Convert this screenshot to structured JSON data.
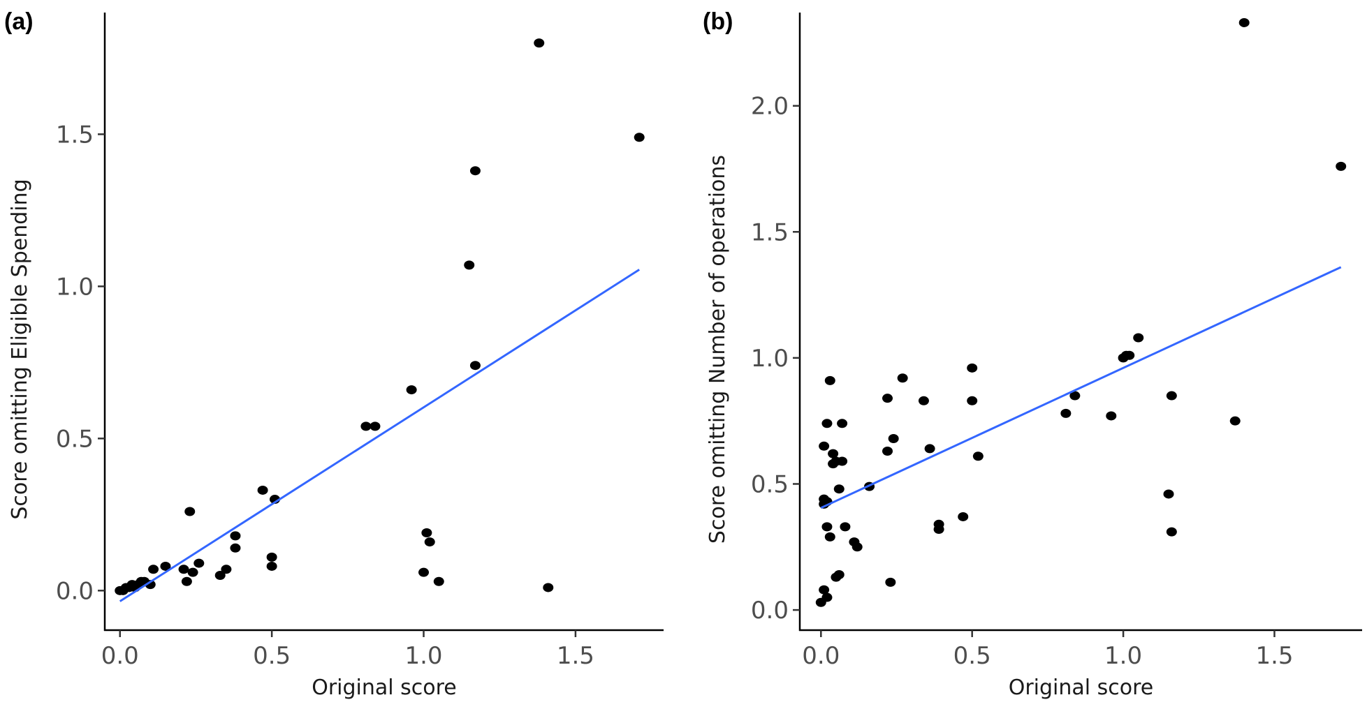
{
  "colors": {
    "point": "#000000",
    "fit_line": "#3366FF"
  },
  "chart_data": [
    {
      "panel": "(a)",
      "type": "scatter",
      "xlabel": "Original score",
      "ylabel": "Score omitting Eligible Spending",
      "xlim": [
        -0.05,
        1.79
      ],
      "ylim": [
        -0.13,
        1.9
      ],
      "xticks": [
        {
          "value": 0.0,
          "label": "0.0"
        },
        {
          "value": 0.5,
          "label": "0.5"
        },
        {
          "value": 1.0,
          "label": "1.0"
        },
        {
          "value": 1.5,
          "label": "1.5"
        }
      ],
      "yticks": [
        {
          "value": 0.0,
          "label": "0.0"
        },
        {
          "value": 0.5,
          "label": "0.5"
        },
        {
          "value": 1.0,
          "label": "1.0"
        },
        {
          "value": 1.5,
          "label": "1.5"
        }
      ],
      "points": [
        [
          0.0,
          0.0
        ],
        [
          0.01,
          0.0
        ],
        [
          0.02,
          0.01
        ],
        [
          0.03,
          0.01
        ],
        [
          0.04,
          0.02
        ],
        [
          0.05,
          0.01
        ],
        [
          0.06,
          0.02
        ],
        [
          0.07,
          0.03
        ],
        [
          0.08,
          0.03
        ],
        [
          0.1,
          0.02
        ],
        [
          0.11,
          0.07
        ],
        [
          0.15,
          0.08
        ],
        [
          0.21,
          0.07
        ],
        [
          0.22,
          0.03
        ],
        [
          0.23,
          0.26
        ],
        [
          0.24,
          0.06
        ],
        [
          0.26,
          0.09
        ],
        [
          0.33,
          0.05
        ],
        [
          0.35,
          0.07
        ],
        [
          0.38,
          0.18
        ],
        [
          0.38,
          0.14
        ],
        [
          0.47,
          0.33
        ],
        [
          0.5,
          0.11
        ],
        [
          0.5,
          0.08
        ],
        [
          0.51,
          0.3
        ],
        [
          0.81,
          0.54
        ],
        [
          0.84,
          0.54
        ],
        [
          0.96,
          0.66
        ],
        [
          1.0,
          0.06
        ],
        [
          1.01,
          0.19
        ],
        [
          1.02,
          0.16
        ],
        [
          1.05,
          0.03
        ],
        [
          1.15,
          1.07
        ],
        [
          1.17,
          1.38
        ],
        [
          1.17,
          0.74
        ],
        [
          1.38,
          1.8
        ],
        [
          1.41,
          0.01
        ],
        [
          1.71,
          1.49
        ]
      ],
      "fit": {
        "x": [
          0.0,
          1.71
        ],
        "y": [
          -0.035,
          1.055
        ]
      }
    },
    {
      "panel": "(b)",
      "type": "scatter",
      "xlabel": "Original score",
      "ylabel": "Score omitting Number of operations",
      "xlim": [
        -0.07,
        1.79
      ],
      "ylim": [
        -0.08,
        2.37
      ],
      "xticks": [
        {
          "value": 0.0,
          "label": "0.0"
        },
        {
          "value": 0.5,
          "label": "0.5"
        },
        {
          "value": 1.0,
          "label": "1.0"
        },
        {
          "value": 1.5,
          "label": "1.5"
        }
      ],
      "yticks": [
        {
          "value": 0.0,
          "label": "0.0"
        },
        {
          "value": 0.5,
          "label": "0.5"
        },
        {
          "value": 1.0,
          "label": "1.0"
        },
        {
          "value": 1.5,
          "label": "1.5"
        },
        {
          "value": 2.0,
          "label": "2.0"
        }
      ],
      "points": [
        [
          0.0,
          0.03
        ],
        [
          0.01,
          0.08
        ],
        [
          0.02,
          0.05
        ],
        [
          0.01,
          0.42
        ],
        [
          0.01,
          0.44
        ],
        [
          0.02,
          0.43
        ],
        [
          0.01,
          0.65
        ],
        [
          0.02,
          0.74
        ],
        [
          0.02,
          0.33
        ],
        [
          0.03,
          0.29
        ],
        [
          0.03,
          0.91
        ],
        [
          0.04,
          0.62
        ],
        [
          0.04,
          0.58
        ],
        [
          0.05,
          0.59
        ],
        [
          0.05,
          0.13
        ],
        [
          0.06,
          0.14
        ],
        [
          0.06,
          0.48
        ],
        [
          0.07,
          0.74
        ],
        [
          0.07,
          0.59
        ],
        [
          0.08,
          0.33
        ],
        [
          0.11,
          0.27
        ],
        [
          0.12,
          0.25
        ],
        [
          0.16,
          0.49
        ],
        [
          0.22,
          0.63
        ],
        [
          0.22,
          0.84
        ],
        [
          0.23,
          0.11
        ],
        [
          0.24,
          0.68
        ],
        [
          0.27,
          0.92
        ],
        [
          0.34,
          0.83
        ],
        [
          0.36,
          0.64
        ],
        [
          0.39,
          0.34
        ],
        [
          0.39,
          0.32
        ],
        [
          0.47,
          0.37
        ],
        [
          0.5,
          0.96
        ],
        [
          0.5,
          0.83
        ],
        [
          0.52,
          0.61
        ],
        [
          0.81,
          0.78
        ],
        [
          0.84,
          0.85
        ],
        [
          0.96,
          0.77
        ],
        [
          1.0,
          1.0
        ],
        [
          1.01,
          1.01
        ],
        [
          1.02,
          1.01
        ],
        [
          1.05,
          1.08
        ],
        [
          1.15,
          0.46
        ],
        [
          1.16,
          0.31
        ],
        [
          1.16,
          0.85
        ],
        [
          1.37,
          0.75
        ],
        [
          1.4,
          2.33
        ],
        [
          1.72,
          1.76
        ]
      ],
      "fit": {
        "x": [
          0.0,
          1.72
        ],
        "y": [
          0.405,
          1.36
        ]
      }
    }
  ]
}
